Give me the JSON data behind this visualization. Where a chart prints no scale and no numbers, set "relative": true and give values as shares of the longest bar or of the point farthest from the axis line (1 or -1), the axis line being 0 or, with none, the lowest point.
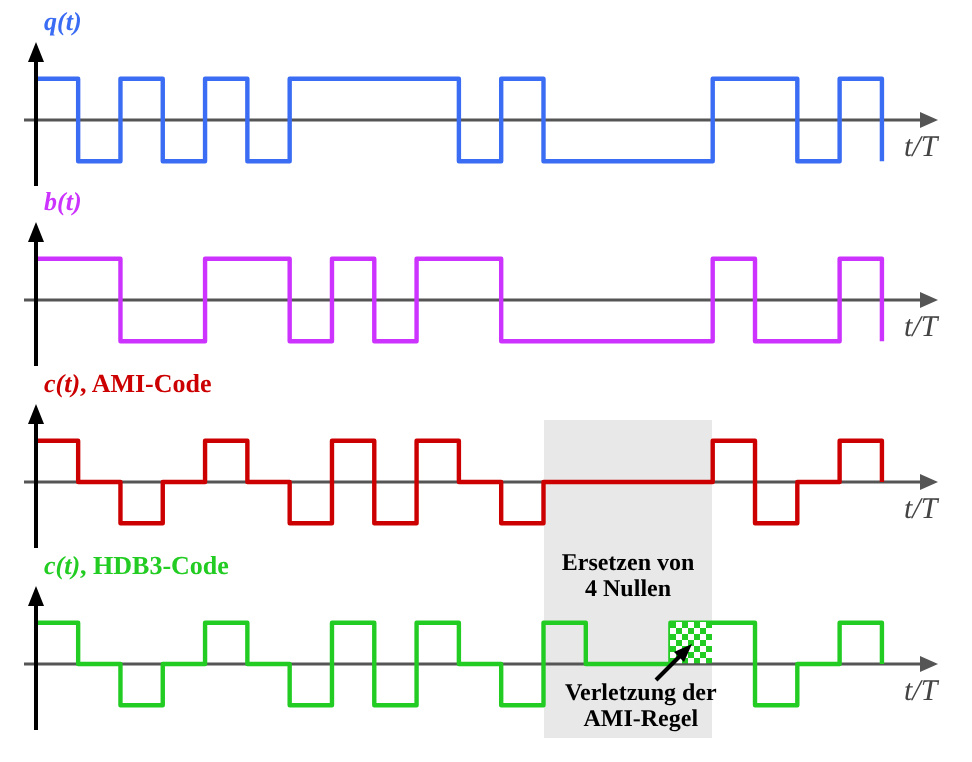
{
  "chart_data": [
    {
      "type": "step",
      "title": "q(t)",
      "xlabel": "t/T",
      "relative": true,
      "categories": [
        null,
        null,
        null,
        null,
        null,
        null,
        null,
        null,
        null,
        null,
        null,
        null,
        null,
        null,
        null,
        null,
        null,
        null,
        null,
        null,
        null
      ],
      "series": [
        {
          "color": "#3a6cf4",
          "values": [
            1,
            -1,
            1,
            -1,
            1,
            -1,
            1,
            1,
            1,
            1,
            -1,
            1,
            -1,
            -1,
            -1,
            -1,
            1,
            1,
            -1,
            1,
            -1
          ]
        }
      ]
    },
    {
      "type": "step",
      "title": "b(t)",
      "xlabel": "t/T",
      "relative": true,
      "categories": [
        null,
        null,
        null,
        null,
        null,
        null,
        null,
        null,
        null,
        null,
        null,
        null,
        null,
        null,
        null,
        null,
        null,
        null,
        null,
        null,
        null
      ],
      "series": [
        {
          "color": "#cc33ff",
          "values": [
            1,
            1,
            -1,
            -1,
            1,
            1,
            -1,
            1,
            -1,
            1,
            1,
            -1,
            -1,
            -1,
            -1,
            -1,
            1,
            -1,
            -1,
            1,
            -1
          ]
        }
      ]
    },
    {
      "type": "step",
      "title": "c(t), AMI-Code",
      "xlabel": "t/T",
      "relative": true,
      "categories": [
        null,
        null,
        null,
        null,
        null,
        null,
        null,
        null,
        null,
        null,
        null,
        null,
        null,
        null,
        null,
        null,
        null,
        null,
        null,
        null,
        null
      ],
      "series": [
        {
          "color": "#cc0000",
          "values": [
            1,
            0,
            -1,
            0,
            1,
            0,
            -1,
            1,
            -1,
            1,
            0,
            -1,
            0,
            0,
            0,
            0,
            1,
            -1,
            0,
            1,
            0
          ]
        }
      ]
    },
    {
      "type": "step",
      "title": "c(t), HDB3-Code",
      "xlabel": "t/T",
      "relative": true,
      "categories": [
        null,
        null,
        null,
        null,
        null,
        null,
        null,
        null,
        null,
        null,
        null,
        null,
        null,
        null,
        null,
        null,
        null,
        null,
        null,
        null,
        null
      ],
      "annotations": [
        "Ersetzen von 4 Nullen",
        "Verletzung der AMI-Regel"
      ],
      "series": [
        {
          "color": "#22cc22",
          "values": [
            1,
            0,
            -1,
            0,
            1,
            0,
            -1,
            1,
            -1,
            1,
            0,
            -1,
            1,
            0,
            0,
            1,
            1,
            -1,
            0,
            1,
            0
          ]
        }
      ]
    }
  ]
}
